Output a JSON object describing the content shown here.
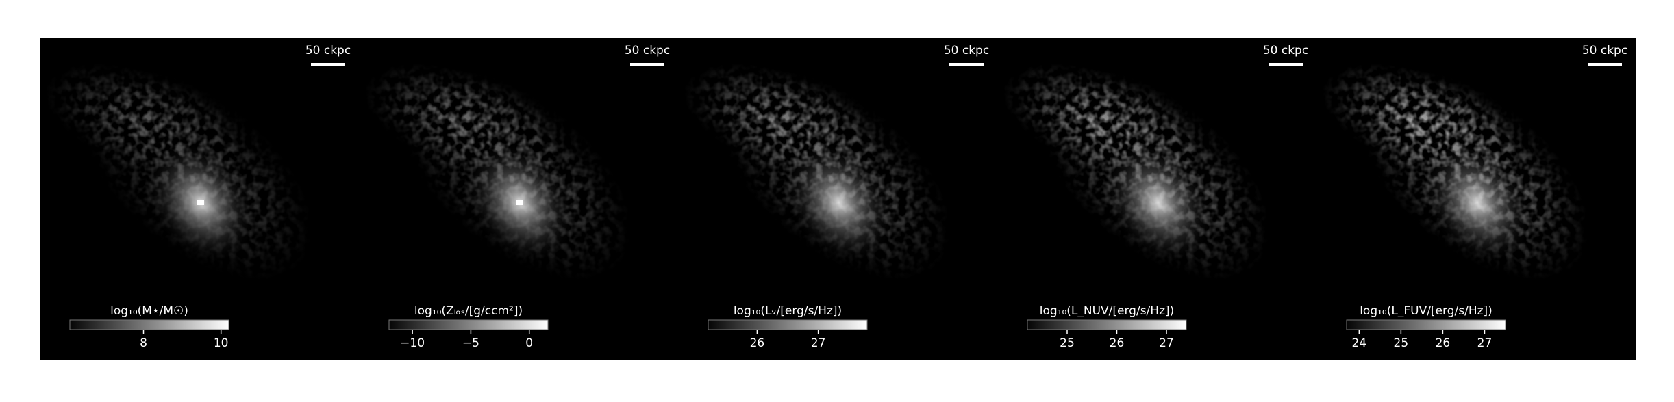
{
  "chart_data": [
    {
      "type": "heatmap",
      "colormap": "gray",
      "scale_bar": "50 ckpc",
      "colorbar": {
        "label": "log₁₀(M⋆/M☉)",
        "lim": [
          6.1,
          10.2
        ],
        "ticks": [
          8,
          10
        ]
      }
    },
    {
      "type": "heatmap",
      "colormap": "gray",
      "scale_bar": "50 ckpc",
      "colorbar": {
        "label": "log₁₀(Zₗₒₛ/[g/ccm²])",
        "lim": [
          -12,
          1.6
        ],
        "ticks": [
          {
            "value": -10,
            "label": "−10"
          },
          {
            "value": -5,
            "label": "−5"
          },
          0
        ]
      }
    },
    {
      "type": "heatmap",
      "colormap": "gray",
      "scale_bar": "50 ckpc",
      "colorbar": {
        "label": "log₁₀(Lᵥ/[erg/s/Hz])",
        "lim": [
          25.2,
          27.8
        ],
        "ticks": [
          26,
          27
        ]
      }
    },
    {
      "type": "heatmap",
      "colormap": "gray",
      "scale_bar": "50 ckpc",
      "colorbar": {
        "label": "log₁₀(L_NUV/[erg/s/Hz])",
        "lim": [
          24.2,
          27.4
        ],
        "ticks": [
          25,
          26,
          27
        ]
      }
    },
    {
      "type": "heatmap",
      "colormap": "gray",
      "scale_bar": "50 ckpc",
      "colorbar": {
        "label": "log₁₀(L_FUV/[erg/s/Hz])",
        "lim": [
          23.7,
          27.5
        ],
        "ticks": [
          24,
          25,
          26,
          27
        ]
      }
    }
  ]
}
